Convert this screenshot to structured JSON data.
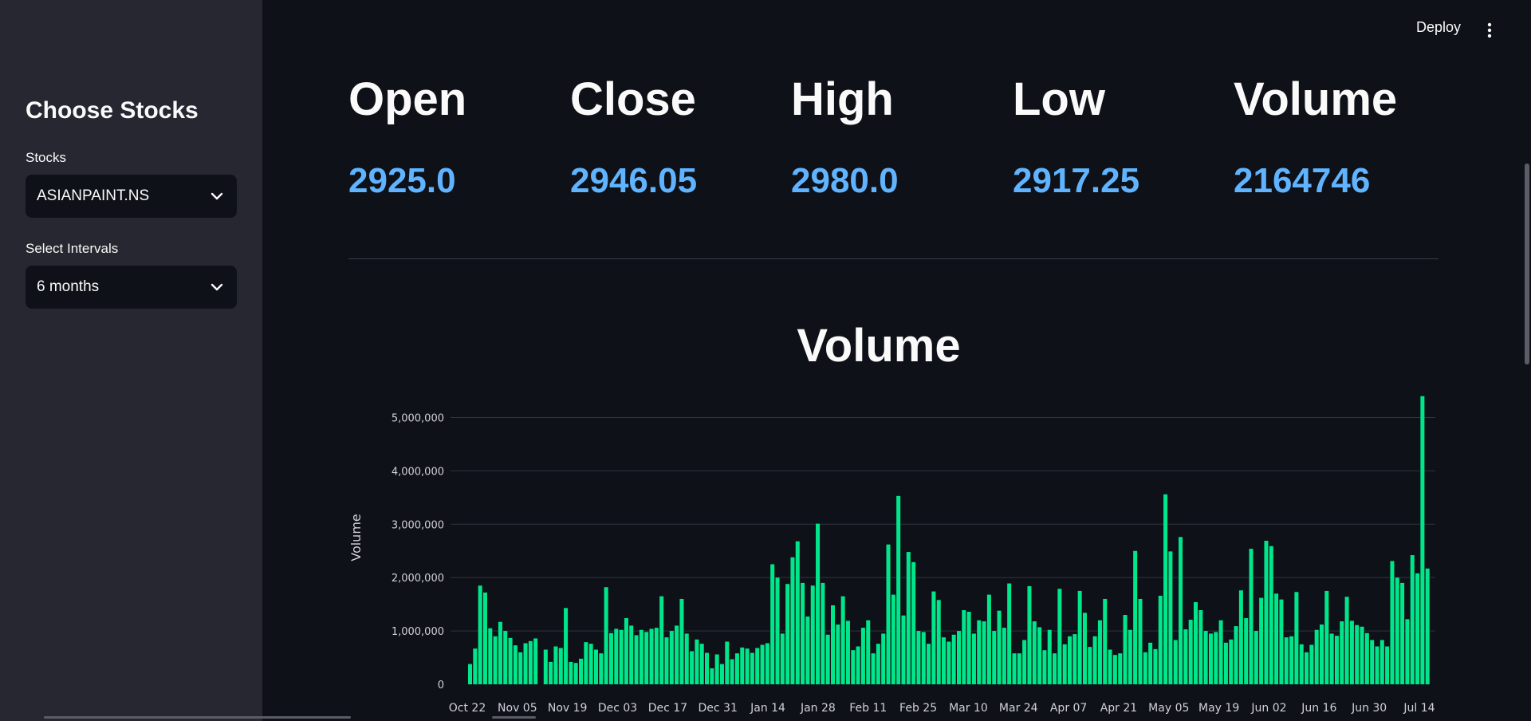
{
  "sidebar": {
    "title": "Choose Stocks",
    "stocks_label": "Stocks",
    "stocks_value": "ASIANPAINT.NS",
    "interval_label": "Select Intervals",
    "interval_value": "6 months"
  },
  "header": {
    "deploy_label": "Deploy",
    "menu_icon": "kebab-menu-icon"
  },
  "metrics": [
    {
      "label": "Open",
      "value": "2925.0"
    },
    {
      "label": "Close",
      "value": "2946.05"
    },
    {
      "label": "High",
      "value": "2980.0"
    },
    {
      "label": "Low",
      "value": "2917.25"
    },
    {
      "label": "Volume",
      "value": "2164746"
    }
  ],
  "colors": {
    "bar": "#00e68a",
    "metric_value": "#60b4ff",
    "sidebar_bg": "#262730",
    "page_bg": "#0e1117"
  },
  "chart_data": {
    "type": "bar",
    "title": "Volume",
    "ylabel": "Volume",
    "xlabel": "",
    "ylim": [
      0,
      5500000
    ],
    "yticks": [
      0,
      1000000,
      2000000,
      3000000,
      4000000,
      5000000
    ],
    "ytick_labels": [
      "0",
      "1,000,000",
      "2,000,000",
      "3,000,000",
      "4,000,000",
      "5,000,000"
    ],
    "xtick_labels": [
      "Oct 22",
      "Nov 05",
      "Nov 19",
      "Dec 03",
      "Dec 17",
      "Dec 31",
      "Jan 14",
      "Jan 28",
      "Feb 11",
      "Feb 25",
      "Mar 10",
      "Mar 24",
      "Apr 07",
      "Apr 21",
      "May 05",
      "May 19",
      "Jun 02",
      "Jun 16",
      "Jun 30",
      "Jul 14"
    ],
    "grid": true,
    "values": [
      380000,
      670000,
      1850000,
      1720000,
      1050000,
      900000,
      1170000,
      1000000,
      870000,
      730000,
      600000,
      770000,
      810000,
      860000,
      0,
      650000,
      420000,
      710000,
      680000,
      1430000,
      420000,
      400000,
      480000,
      790000,
      760000,
      650000,
      580000,
      1820000,
      960000,
      1040000,
      1020000,
      1240000,
      1100000,
      920000,
      1020000,
      980000,
      1040000,
      1060000,
      1650000,
      880000,
      1000000,
      1100000,
      1600000,
      950000,
      620000,
      840000,
      760000,
      590000,
      300000,
      560000,
      380000,
      800000,
      470000,
      580000,
      690000,
      670000,
      590000,
      680000,
      740000,
      770000,
      2250000,
      2000000,
      950000,
      1880000,
      2380000,
      2680000,
      1900000,
      1270000,
      1850000,
      3010000,
      1900000,
      930000,
      1480000,
      1120000,
      1650000,
      1190000,
      640000,
      710000,
      1060000,
      1200000,
      580000,
      760000,
      950000,
      2620000,
      1680000,
      3530000,
      1290000,
      2480000,
      2290000,
      1000000,
      980000,
      760000,
      1740000,
      1580000,
      880000,
      800000,
      930000,
      1000000,
      1390000,
      1360000,
      950000,
      1200000,
      1180000,
      1680000,
      1000000,
      1380000,
      1060000,
      1890000,
      580000,
      580000,
      830000,
      1840000,
      1180000,
      1070000,
      640000,
      1020000,
      580000,
      1790000,
      750000,
      900000,
      940000,
      1750000,
      1340000,
      700000,
      900000,
      1200000,
      1600000,
      650000,
      550000,
      580000,
      1300000,
      1020000,
      2500000,
      1600000,
      600000,
      780000,
      660000,
      1660000,
      3560000,
      2490000,
      830000,
      2760000,
      1030000,
      1210000,
      1540000,
      1390000,
      1000000,
      950000,
      980000,
      1200000,
      780000,
      840000,
      1090000,
      1760000,
      1240000,
      2540000,
      1000000,
      1620000,
      2690000,
      2590000,
      1700000,
      1590000,
      880000,
      900000,
      1730000,
      750000,
      600000,
      740000,
      1020000,
      1120000,
      1750000,
      950000,
      910000,
      1180000,
      1640000,
      1190000,
      1110000,
      1080000,
      960000,
      830000,
      710000,
      830000,
      710000,
      2310000,
      2000000,
      1900000,
      1220000,
      2420000,
      2080000,
      5400000,
      2170000
    ]
  }
}
